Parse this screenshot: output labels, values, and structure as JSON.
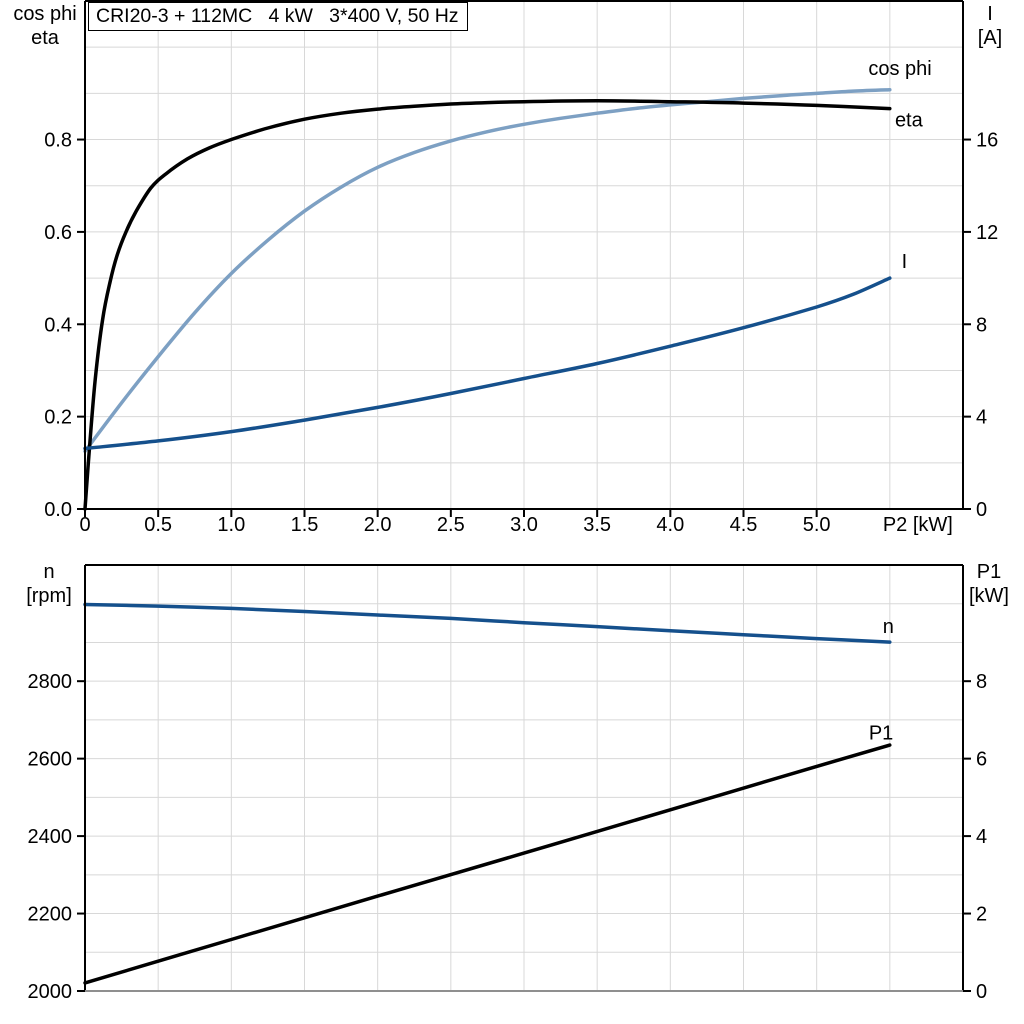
{
  "title": "CRI20-3 + 112MC   4 kW   3*400 V, 50 Hz",
  "colors": {
    "black": "#000000",
    "light_blue": "#7da0c3",
    "dark_blue": "#15508c",
    "grid": "#d8d8d8",
    "axis": "#000000",
    "bottom_baseline": "#8f8f8f",
    "background": "#ffffff"
  },
  "chart_data": [
    {
      "type": "line",
      "title": "CRI20-3 + 112MC   4 kW   3*400 V, 50 Hz",
      "grid": true,
      "legend_position": "inline-curve-labels",
      "x_axis": {
        "label": "P2 [kW]",
        "min": 0,
        "max": 6,
        "tick_values": [
          0,
          0.5,
          1,
          1.5,
          2,
          2.5,
          3,
          3.5,
          4,
          4.5,
          5
        ],
        "tick_labels": [
          "0",
          "0.5",
          "1.0",
          "1.5",
          "2.0",
          "2.5",
          "3.0",
          "3.5",
          "4.0",
          "4.5",
          "5.0"
        ],
        "grid_step": 0.5,
        "axis_label_x": 5.5,
        "baseline_color": "#000000"
      },
      "y_left": {
        "title_lines": [
          "cos phi",
          "eta"
        ],
        "min": 0,
        "max": 1.1,
        "tick_values": [
          0,
          0.2,
          0.4,
          0.6,
          0.8
        ],
        "tick_labels": [
          "0.0",
          "0.2",
          "0.4",
          "0.6",
          "0.8"
        ],
        "grid_step": 0.1,
        "grid_max": 1.0
      },
      "y_right": {
        "title_lines": [
          "I",
          "[A]"
        ],
        "min": 0,
        "max": 22,
        "tick_values": [
          0,
          4,
          8,
          12,
          16
        ],
        "tick_labels": [
          "0",
          "4",
          "8",
          "12",
          "16"
        ]
      },
      "series": [
        {
          "name": "cos phi",
          "axis": "left",
          "color": "#7da0c3",
          "label": {
            "text": "cos phi",
            "x": 5.57,
            "y": 0.955
          },
          "points": [
            [
              0,
              0.125
            ],
            [
              0.25,
              0.23
            ],
            [
              0.5,
              0.33
            ],
            [
              0.75,
              0.425
            ],
            [
              1,
              0.51
            ],
            [
              1.25,
              0.582
            ],
            [
              1.5,
              0.645
            ],
            [
              1.75,
              0.697
            ],
            [
              2,
              0.74
            ],
            [
              2.25,
              0.772
            ],
            [
              2.5,
              0.797
            ],
            [
              2.75,
              0.817
            ],
            [
              3,
              0.833
            ],
            [
              3.25,
              0.846
            ],
            [
              3.5,
              0.857
            ],
            [
              3.75,
              0.867
            ],
            [
              4,
              0.875
            ],
            [
              4.25,
              0.882
            ],
            [
              4.5,
              0.889
            ],
            [
              4.75,
              0.895
            ],
            [
              5,
              0.9
            ],
            [
              5.25,
              0.905
            ],
            [
              5.5,
              0.908
            ]
          ]
        },
        {
          "name": "eta",
          "axis": "left",
          "color": "#000000",
          "label": {
            "text": "eta",
            "x": 5.63,
            "y": 0.843
          },
          "points": [
            [
              0,
              0
            ],
            [
              0.03,
              0.13
            ],
            [
              0.07,
              0.28
            ],
            [
              0.12,
              0.41
            ],
            [
              0.17,
              0.49
            ],
            [
              0.22,
              0.55
            ],
            [
              0.28,
              0.6
            ],
            [
              0.35,
              0.645
            ],
            [
              0.45,
              0.695
            ],
            [
              0.55,
              0.725
            ],
            [
              0.7,
              0.758
            ],
            [
              0.85,
              0.782
            ],
            [
              1,
              0.8
            ],
            [
              1.25,
              0.825
            ],
            [
              1.5,
              0.844
            ],
            [
              1.75,
              0.857
            ],
            [
              2,
              0.866
            ],
            [
              2.25,
              0.872
            ],
            [
              2.5,
              0.877
            ],
            [
              2.75,
              0.88
            ],
            [
              3,
              0.882
            ],
            [
              3.5,
              0.884
            ],
            [
              4,
              0.882
            ],
            [
              4.5,
              0.879
            ],
            [
              5,
              0.874
            ],
            [
              5.5,
              0.867
            ]
          ]
        },
        {
          "name": "I",
          "axis": "right",
          "color": "#15508c",
          "label": {
            "text": "I",
            "x": 5.6,
            "y": 10.75
          },
          "points": [
            [
              0,
              2.62
            ],
            [
              0.5,
              2.95
            ],
            [
              1,
              3.35
            ],
            [
              1.5,
              3.85
            ],
            [
              2,
              4.4
            ],
            [
              2.5,
              5.0
            ],
            [
              3,
              5.65
            ],
            [
              3.5,
              6.3
            ],
            [
              4,
              7.05
            ],
            [
              4.5,
              7.85
            ],
            [
              5,
              8.75
            ],
            [
              5.25,
              9.3
            ],
            [
              5.5,
              10.0
            ]
          ]
        }
      ]
    },
    {
      "type": "line",
      "title": "",
      "grid": true,
      "legend_position": "inline-curve-labels",
      "x_axis": {
        "label": "",
        "min": 0,
        "max": 6,
        "tick_values": [],
        "tick_labels": [],
        "grid_step": 0.5,
        "axis_label_x": 5.5,
        "baseline_color": "#8f8f8f"
      },
      "y_left": {
        "title_lines": [
          "n",
          "[rpm]"
        ],
        "min": 2000,
        "max": 3100,
        "tick_values": [
          2000,
          2200,
          2400,
          2600,
          2800
        ],
        "tick_labels": [
          "2000",
          "2200",
          "2400",
          "2600",
          "2800"
        ],
        "grid_step": 100,
        "grid_max": 3000
      },
      "y_right": {
        "title_lines": [
          "P1",
          "[kW]"
        ],
        "min": 0,
        "max": 11,
        "tick_values": [
          0,
          2,
          4,
          6,
          8
        ],
        "tick_labels": [
          "0",
          "2",
          "4",
          "6",
          "8"
        ]
      },
      "series": [
        {
          "name": "n",
          "axis": "left",
          "color": "#15508c",
          "label": {
            "text": "n",
            "x": 5.49,
            "y": 2943
          },
          "points": [
            [
              0,
              2998
            ],
            [
              0.5,
              2994
            ],
            [
              1,
              2988
            ],
            [
              1.5,
              2980
            ],
            [
              2,
              2971
            ],
            [
              2.5,
              2962
            ],
            [
              3,
              2951
            ],
            [
              3.5,
              2941
            ],
            [
              4,
              2930
            ],
            [
              4.5,
              2920
            ],
            [
              5,
              2910
            ],
            [
              5.5,
              2901
            ]
          ]
        },
        {
          "name": "P1",
          "axis": "right",
          "color": "#000000",
          "label": {
            "text": "P1",
            "x": 5.44,
            "y": 6.67
          },
          "points": [
            [
              0,
              0.21
            ],
            [
              1,
              1.33
            ],
            [
              2,
              2.45
            ],
            [
              3,
              3.56
            ],
            [
              4,
              4.68
            ],
            [
              5,
              5.8
            ],
            [
              5.5,
              6.35
            ]
          ]
        }
      ]
    }
  ]
}
